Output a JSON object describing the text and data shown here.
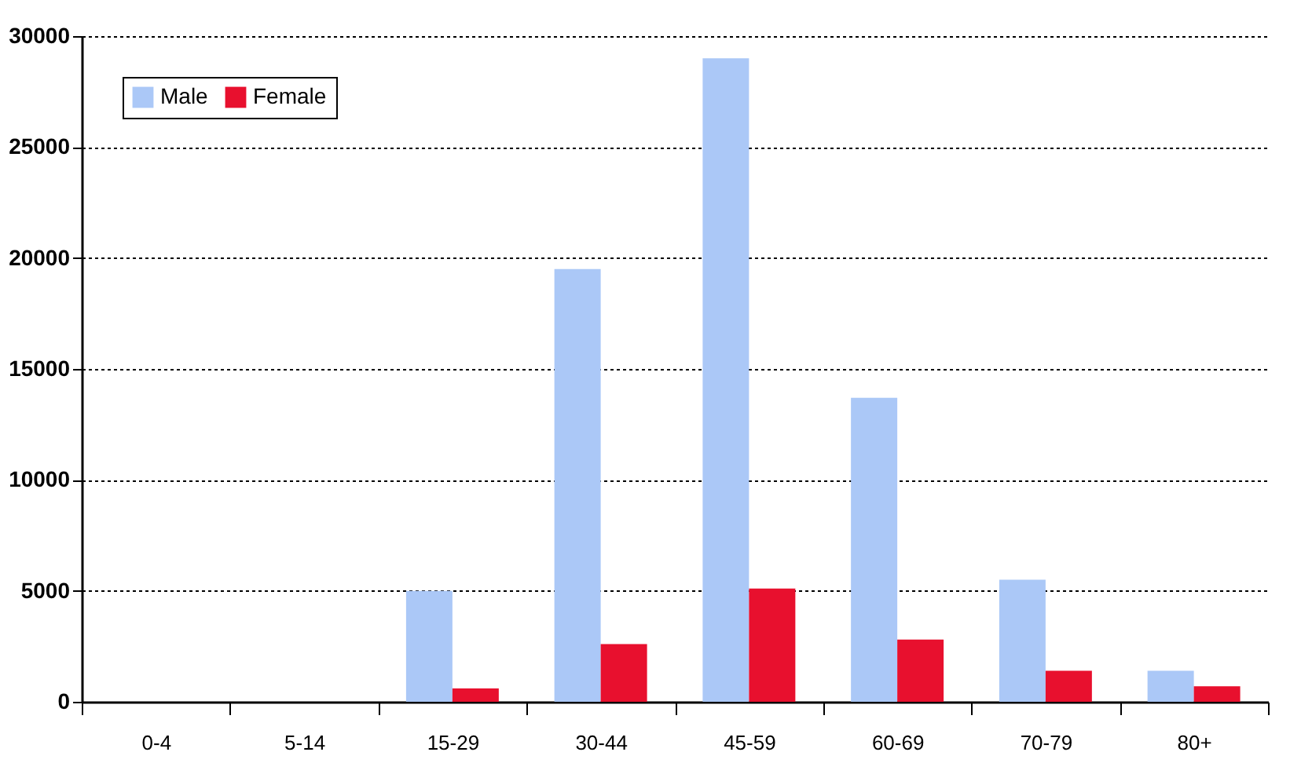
{
  "chart_data": {
    "type": "bar",
    "categories": [
      "0-4",
      "5-14",
      "15-29",
      "30-44",
      "45-59",
      "60-69",
      "70-79",
      "80+"
    ],
    "series": [
      {
        "name": "Male",
        "color": "#abc8f7",
        "values": [
          0,
          0,
          5000,
          19500,
          29000,
          13700,
          5500,
          1400
        ]
      },
      {
        "name": "Female",
        "color": "#e8102e",
        "values": [
          0,
          0,
          600,
          2600,
          5100,
          2800,
          1400,
          700
        ]
      }
    ],
    "ylim": [
      0,
      30000
    ],
    "yticks": [
      0,
      5000,
      10000,
      15000,
      20000,
      25000,
      30000
    ],
    "grid": "y",
    "legend": "top left"
  }
}
